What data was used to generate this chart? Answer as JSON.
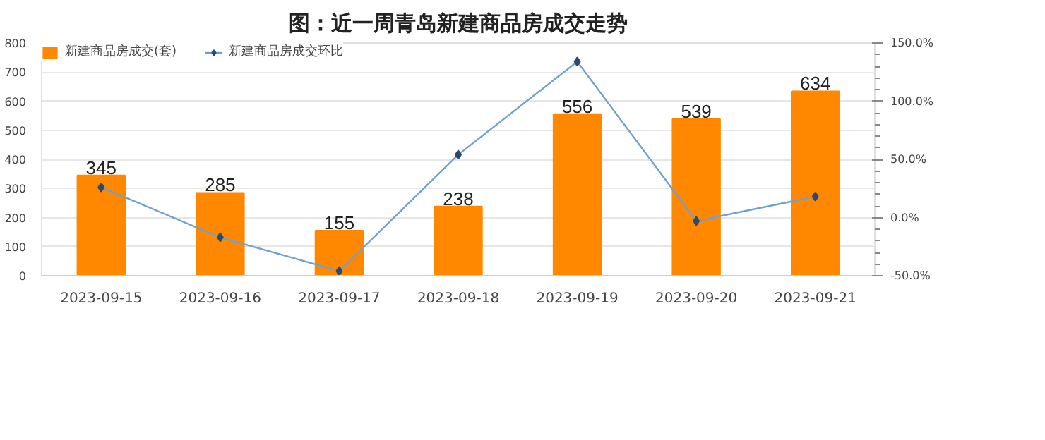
{
  "chart_data": {
    "type": "bar",
    "title": "图：近一周青岛新建商品房成交走势",
    "categories": [
      "2023-09-15",
      "2023-09-16",
      "2023-09-17",
      "2023-09-18",
      "2023-09-19",
      "2023-09-20",
      "2023-09-21"
    ],
    "series": [
      {
        "name": "新建商品房成交(套)",
        "color": "#ff8800",
        "values": [
          345,
          285,
          155,
          238,
          556,
          539,
          634
        ],
        "value_labels": [
          "345",
          "285",
          "155",
          "238",
          "556",
          "539",
          "634"
        ]
      },
      {
        "name": "新建商品房成交环比",
        "type": "line",
        "axis": "y2",
        "color": "#6fa0d0",
        "marker": "diamond",
        "values": [
          26,
          -17,
          -46,
          54,
          134,
          -3,
          18
        ]
      }
    ],
    "ylim": [
      0,
      800
    ],
    "yticks": [
      0,
      100,
      200,
      300,
      400,
      500,
      600,
      700,
      800
    ],
    "y2lim": [
      -50,
      150
    ],
    "y2ticks": [
      {
        "value": -50,
        "label": "-50.0%"
      },
      {
        "value": 0,
        "label": "0.0%"
      },
      {
        "value": 50,
        "label": "50.0%"
      },
      {
        "value": 100,
        "label": "100.0%"
      },
      {
        "value": 150,
        "label": "150.0%"
      }
    ],
    "grid": "y",
    "legend": "top left"
  }
}
